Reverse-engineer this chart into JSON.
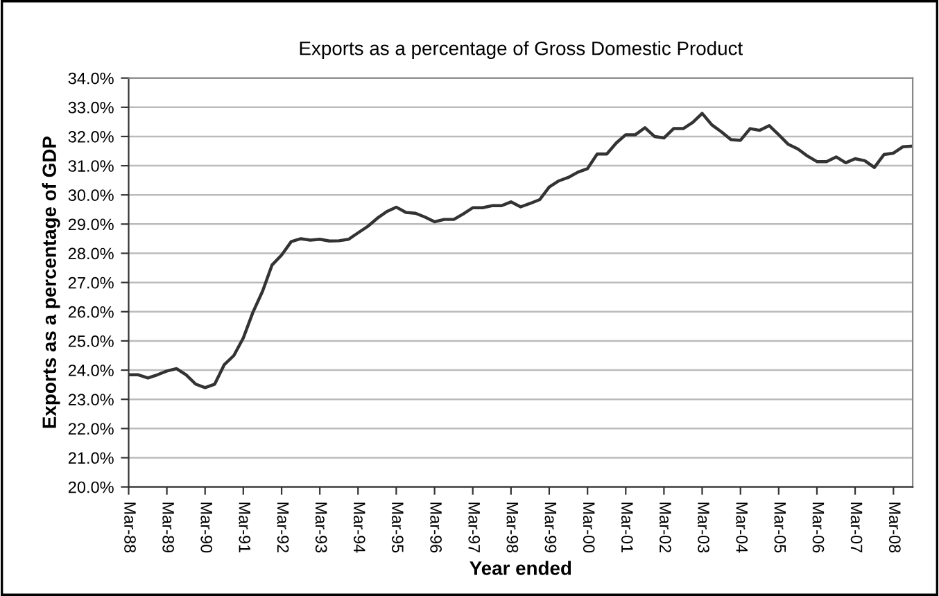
{
  "chart_data": {
    "type": "line",
    "title": "Exports as a percentage of Gross Domestic Product",
    "xlabel": "Year ended",
    "ylabel": "Exports as a percentage of GDP",
    "x": [
      "1988-03",
      "1988-06",
      "1988-09",
      "1988-12",
      "1989-03",
      "1989-06",
      "1989-09",
      "1989-12",
      "1990-03",
      "1990-06",
      "1990-09",
      "1990-12",
      "1991-03",
      "1991-06",
      "1991-09",
      "1991-12",
      "1992-03",
      "1992-06",
      "1992-09",
      "1992-12",
      "1993-03",
      "1993-06",
      "1993-09",
      "1993-12",
      "1994-03",
      "1994-06",
      "1994-09",
      "1994-12",
      "1995-03",
      "1995-06",
      "1995-09",
      "1995-12",
      "1996-03",
      "1996-06",
      "1996-09",
      "1996-12",
      "1997-03",
      "1997-06",
      "1997-09",
      "1997-12",
      "1998-03",
      "1998-06",
      "1998-09",
      "1998-12",
      "1999-03",
      "1999-06",
      "1999-09",
      "1999-12",
      "2000-03",
      "2000-06",
      "2000-09",
      "2000-12",
      "2001-03",
      "2001-06",
      "2001-09",
      "2001-12",
      "2002-03",
      "2002-06",
      "2002-09",
      "2002-12",
      "2003-03",
      "2003-06",
      "2003-09",
      "2003-12",
      "2004-03",
      "2004-06",
      "2004-09",
      "2004-12",
      "2005-03",
      "2005-06",
      "2005-09",
      "2005-12",
      "2006-03",
      "2006-06",
      "2006-09",
      "2006-12",
      "2007-03",
      "2007-06",
      "2007-09",
      "2007-12",
      "2008-03",
      "2008-06",
      "2008-09"
    ],
    "series": [
      {
        "color": "#333333",
        "values": [
          23.84,
          23.84,
          23.73,
          23.84,
          23.97,
          24.05,
          23.84,
          23.52,
          23.4,
          23.52,
          24.19,
          24.5,
          25.1,
          25.98,
          26.7,
          27.6,
          27.94,
          28.4,
          28.5,
          28.45,
          28.48,
          28.42,
          28.43,
          28.48,
          28.7,
          28.92,
          29.2,
          29.43,
          29.58,
          29.4,
          29.37,
          29.24,
          29.08,
          29.16,
          29.16,
          29.35,
          29.56,
          29.56,
          29.63,
          29.63,
          29.76,
          29.59,
          29.71,
          29.84,
          30.27,
          30.48,
          30.6,
          30.78,
          30.9,
          31.4,
          31.4,
          31.78,
          32.06,
          32.06,
          32.3,
          32.0,
          31.95,
          32.27,
          32.27,
          32.48,
          32.79,
          32.4,
          32.16,
          31.89,
          31.87,
          32.27,
          32.21,
          32.37,
          32.06,
          31.73,
          31.57,
          31.33,
          31.14,
          31.14,
          31.3,
          31.1,
          31.24,
          31.17,
          30.94,
          31.38,
          31.43,
          31.65,
          31.67
        ]
      }
    ],
    "xlim": [
      "1988-03",
      "2008-09"
    ],
    "xticks": [
      {
        "value": "1988-03",
        "label": "Mar-88"
      },
      {
        "value": "1989-03",
        "label": "Mar-89"
      },
      {
        "value": "1990-03",
        "label": "Mar-90"
      },
      {
        "value": "1991-03",
        "label": "Mar-91"
      },
      {
        "value": "1992-03",
        "label": "Mar-92"
      },
      {
        "value": "1993-03",
        "label": "Mar-93"
      },
      {
        "value": "1994-03",
        "label": "Mar-94"
      },
      {
        "value": "1995-03",
        "label": "Mar-95"
      },
      {
        "value": "1996-03",
        "label": "Mar-96"
      },
      {
        "value": "1997-03",
        "label": "Mar-97"
      },
      {
        "value": "1998-03",
        "label": "Mar-98"
      },
      {
        "value": "1999-03",
        "label": "Mar-99"
      },
      {
        "value": "2000-03",
        "label": "Mar-00"
      },
      {
        "value": "2001-03",
        "label": "Mar-01"
      },
      {
        "value": "2002-03",
        "label": "Mar-02"
      },
      {
        "value": "2003-03",
        "label": "Mar-03"
      },
      {
        "value": "2004-03",
        "label": "Mar-04"
      },
      {
        "value": "2005-03",
        "label": "Mar-05"
      },
      {
        "value": "2006-03",
        "label": "Mar-06"
      },
      {
        "value": "2007-03",
        "label": "Mar-07"
      },
      {
        "value": "2008-03",
        "label": "Mar-08"
      }
    ],
    "ylim": [
      20,
      34
    ],
    "yticks": [
      {
        "value": 20,
        "label": "20.0%"
      },
      {
        "value": 21,
        "label": "21.0%"
      },
      {
        "value": 22,
        "label": "22.0%"
      },
      {
        "value": 23,
        "label": "23.0%"
      },
      {
        "value": 24,
        "label": "24.0%"
      },
      {
        "value": 25,
        "label": "25.0%"
      },
      {
        "value": 26,
        "label": "26.0%"
      },
      {
        "value": 27,
        "label": "27.0%"
      },
      {
        "value": 28,
        "label": "28.0%"
      },
      {
        "value": 29,
        "label": "29.0%"
      },
      {
        "value": 30,
        "label": "30.0%"
      },
      {
        "value": 31,
        "label": "31.0%"
      },
      {
        "value": 32,
        "label": "32.0%"
      },
      {
        "value": 33,
        "label": "33.0%"
      },
      {
        "value": 34,
        "label": "34.0%"
      }
    ],
    "grid": "y",
    "marker": "none",
    "line_style": "solid"
  }
}
